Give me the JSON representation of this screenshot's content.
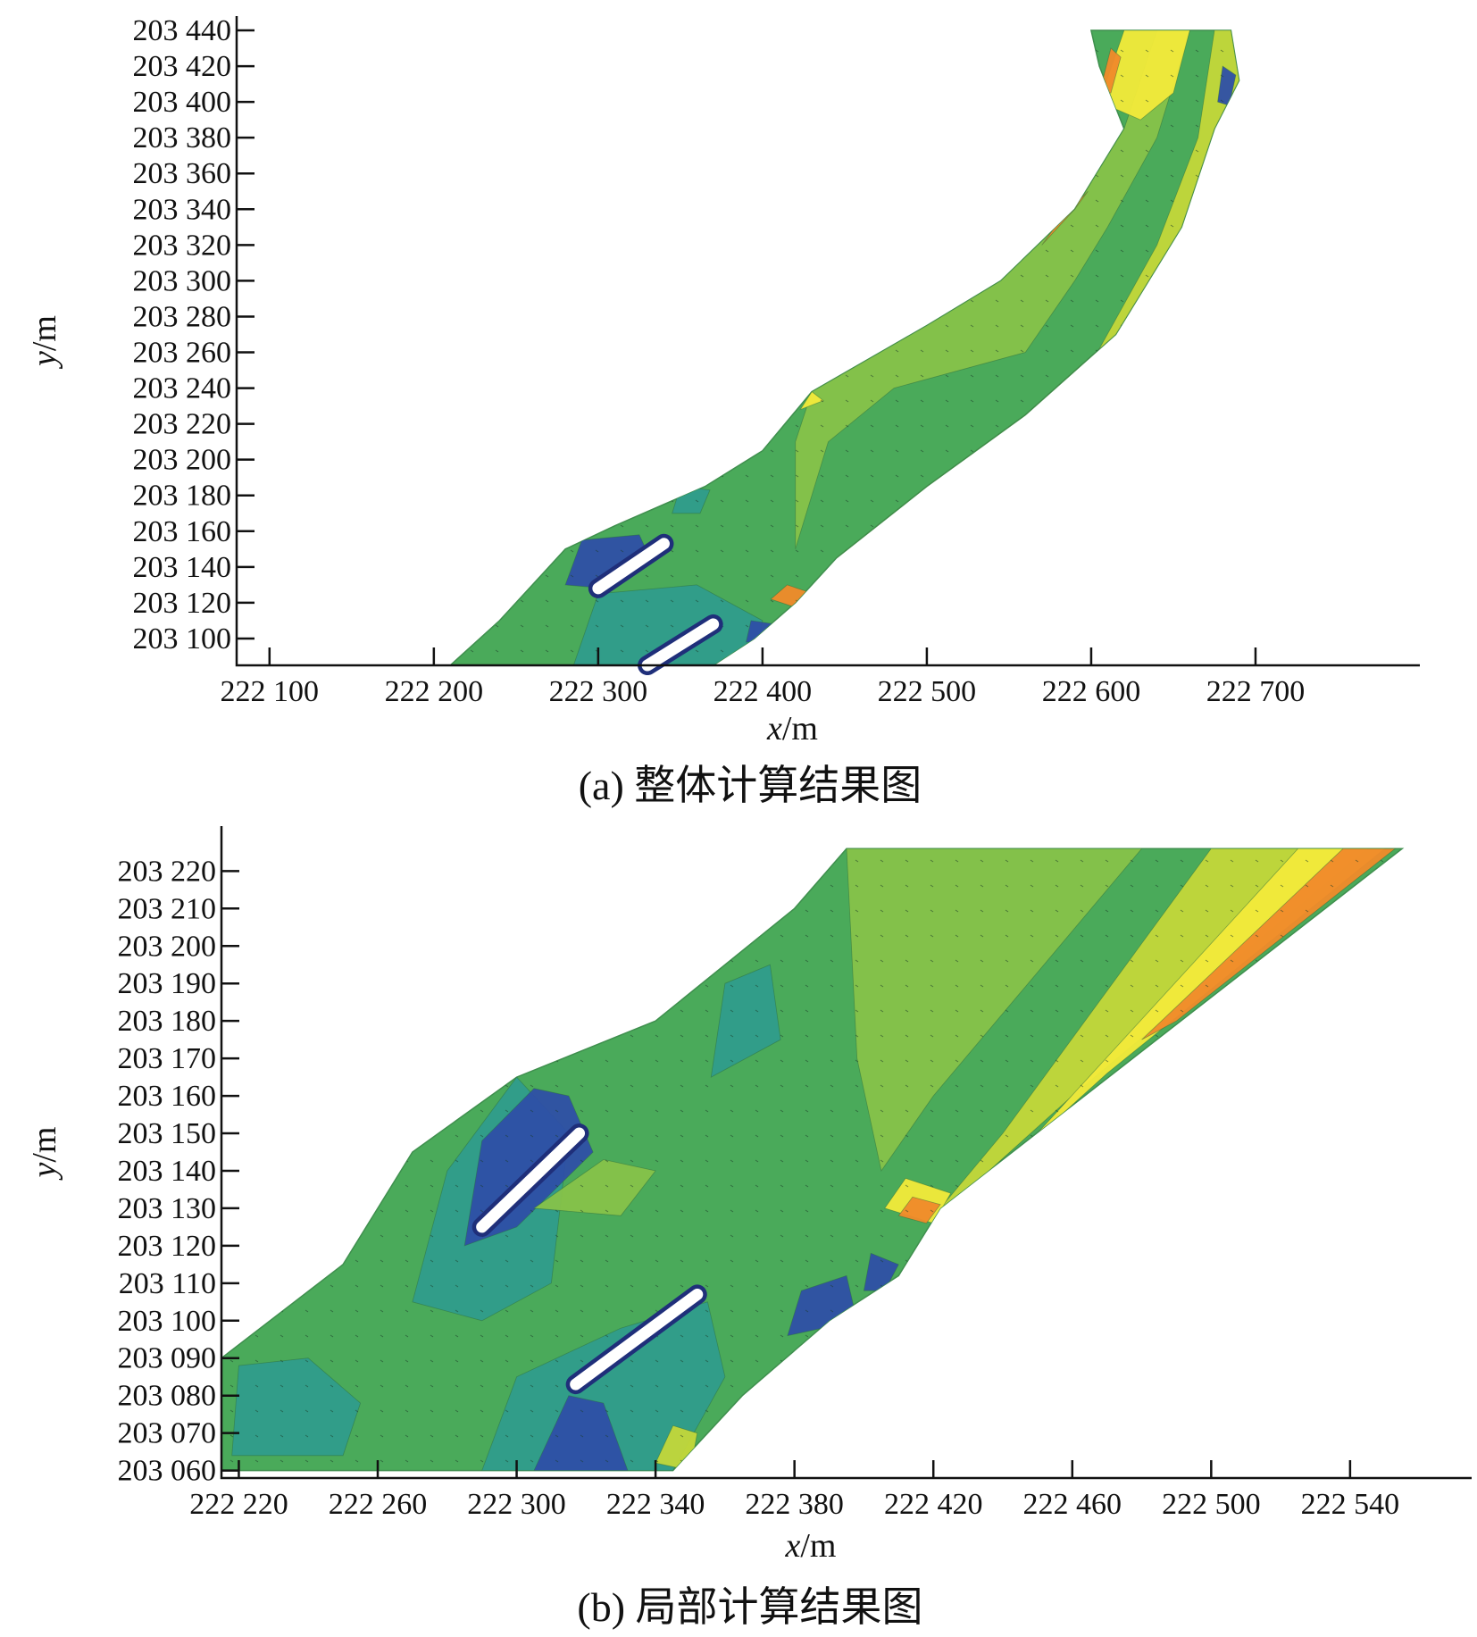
{
  "chart_data": [
    {
      "type": "heatmap",
      "title": "",
      "caption": "(a) 整体计算结果图",
      "xlabel_var": "x",
      "xlabel_unit": "/m",
      "ylabel_var": "y",
      "ylabel_unit": "/m",
      "xlim": [
        222080,
        222800
      ],
      "ylim": [
        203085,
        203448
      ],
      "x_ticks": [
        222100,
        222200,
        222300,
        222400,
        222500,
        222600,
        222700
      ],
      "x_tick_labels": [
        "222 100",
        "222 200",
        "222 300",
        "222 400",
        "222 500",
        "222 600",
        "222 700"
      ],
      "y_ticks": [
        203100,
        203120,
        203140,
        203160,
        203180,
        203200,
        203220,
        203240,
        203260,
        203280,
        203300,
        203320,
        203340,
        203360,
        203380,
        203400,
        203420,
        203440
      ],
      "y_tick_labels": [
        "203 100",
        "203 120",
        "203 140",
        "203 160",
        "203 180",
        "203 200",
        "203 220",
        "203 240",
        "203 260",
        "203 280",
        "203 300",
        "203 320",
        "203 340",
        "203 360",
        "203 380",
        "203 400",
        "203 420",
        "203 440"
      ],
      "colors": {
        "dark_blue": "#2e4fa6",
        "teal": "#2f9c8c",
        "green_mid": "#4aaa5a",
        "green_light": "#86c24a",
        "yellow_green": "#c3d73a",
        "yellow": "#f2ea3a",
        "orange": "#f08a2a",
        "red": "#d8402a"
      },
      "river_outline": [
        [
          222210,
          203085
        ],
        [
          222240,
          203110
        ],
        [
          222280,
          203150
        ],
        [
          222310,
          203163
        ],
        [
          222365,
          203185
        ],
        [
          222400,
          203205
        ],
        [
          222430,
          203238
        ],
        [
          222500,
          203275
        ],
        [
          222545,
          203300
        ],
        [
          222590,
          203340
        ],
        [
          222620,
          203385
        ],
        [
          222605,
          203420
        ],
        [
          222600,
          203440
        ],
        [
          222685,
          203440
        ],
        [
          222690,
          203412
        ],
        [
          222675,
          203385
        ],
        [
          222655,
          203330
        ],
        [
          222615,
          203270
        ],
        [
          222560,
          203225
        ],
        [
          222500,
          203185
        ],
        [
          222445,
          203145
        ],
        [
          222420,
          203120
        ],
        [
          222395,
          203100
        ],
        [
          222370,
          203085
        ]
      ],
      "regions": [
        {
          "fill": "teal",
          "pts": [
            [
              222285,
              203085
            ],
            [
              222300,
              203125
            ],
            [
              222360,
              203130
            ],
            [
              222400,
              203110
            ],
            [
              222395,
              203085
            ]
          ]
        },
        {
          "fill": "dark_blue",
          "pts": [
            [
              222280,
              203130
            ],
            [
              222290,
              203155
            ],
            [
              222325,
              203158
            ],
            [
              222330,
              203148
            ],
            [
              222305,
              203128
            ]
          ]
        },
        {
          "fill": "teal",
          "pts": [
            [
              222345,
              203170
            ],
            [
              222350,
              203185
            ],
            [
              222368,
              203183
            ],
            [
              222362,
              203170
            ]
          ]
        },
        {
          "fill": "dark_blue",
          "pts": [
            [
              222390,
              203098
            ],
            [
              222393,
              203110
            ],
            [
              222408,
              203108
            ],
            [
              222405,
              203098
            ]
          ]
        },
        {
          "fill": "green_light",
          "pts": [
            [
              222420,
              203150
            ],
            [
              222440,
              203210
            ],
            [
              222480,
              203240
            ],
            [
              222560,
              203260
            ],
            [
              222590,
              203300
            ],
            [
              222610,
              203330
            ],
            [
              222640,
              203380
            ],
            [
              222660,
              203440
            ],
            [
              222640,
              203440
            ],
            [
              222620,
              203385
            ],
            [
              222590,
              203340
            ],
            [
              222545,
              203300
            ],
            [
              222500,
              203275
            ],
            [
              222430,
              203238
            ],
            [
              222420,
              203210
            ]
          ]
        },
        {
          "fill": "yellow_green",
          "pts": [
            [
              222440,
              203130
            ],
            [
              222500,
              203178
            ],
            [
              222560,
              203218
            ],
            [
              222605,
              203262
            ],
            [
              222640,
              203320
            ],
            [
              222665,
              203380
            ],
            [
              222675,
              203440
            ],
            [
              222685,
              203440
            ],
            [
              222690,
              203412
            ],
            [
              222675,
              203385
            ],
            [
              222655,
              203330
            ],
            [
              222615,
              203270
            ],
            [
              222560,
              203225
            ],
            [
              222500,
              203185
            ],
            [
              222445,
              203145
            ]
          ]
        },
        {
          "fill": "yellow",
          "pts": [
            [
              222540,
              203300
            ],
            [
              222570,
              203325
            ],
            [
              222590,
              203340
            ],
            [
              222600,
              203355
            ],
            [
              222585,
              203365
            ],
            [
              222560,
              203325
            ]
          ]
        },
        {
          "fill": "yellow",
          "pts": [
            [
              222605,
              203400
            ],
            [
              222620,
              203440
            ],
            [
              222660,
              203440
            ],
            [
              222650,
              203405
            ],
            [
              222630,
              203390
            ]
          ]
        },
        {
          "fill": "orange",
          "pts": [
            [
              222570,
              203320
            ],
            [
              222590,
              203340
            ],
            [
              222598,
              203350
            ],
            [
              222582,
              203335
            ]
          ]
        },
        {
          "fill": "orange",
          "pts": [
            [
              222605,
              203405
            ],
            [
              222612,
              203430
            ],
            [
              222618,
              203425
            ],
            [
              222612,
              203405
            ]
          ]
        },
        {
          "fill": "orange",
          "pts": [
            [
              222405,
              203122
            ],
            [
              222415,
              203130
            ],
            [
              222428,
              203126
            ],
            [
              222418,
              203118
            ]
          ]
        },
        {
          "fill": "dark_blue",
          "pts": [
            [
              222677,
              203400
            ],
            [
              222680,
              203420
            ],
            [
              222688,
              203415
            ],
            [
              222684,
              203398
            ]
          ]
        },
        {
          "fill": "yellow",
          "pts": [
            [
              222423,
              203228
            ],
            [
              222430,
              203238
            ],
            [
              222437,
              203233
            ]
          ]
        }
      ],
      "spurs": [
        {
          "from": [
            222300,
            203128
          ],
          "to": [
            222340,
            203153
          ]
        },
        {
          "from": [
            222330,
            203085
          ],
          "to": [
            222370,
            203108
          ]
        }
      ]
    },
    {
      "type": "heatmap",
      "title": "",
      "caption": "(b) 局部计算结果图",
      "xlabel_var": "x",
      "xlabel_unit": "/m",
      "ylabel_var": "y",
      "ylabel_unit": "/m",
      "xlim": [
        222215,
        222575
      ],
      "ylim": [
        203058,
        203232
      ],
      "x_ticks": [
        222220,
        222260,
        222300,
        222340,
        222380,
        222420,
        222460,
        222500,
        222540
      ],
      "x_tick_labels": [
        "222 220",
        "222 260",
        "222 300",
        "222 340",
        "222 380",
        "222 420",
        "222 460",
        "222 500",
        "222 540"
      ],
      "y_ticks": [
        203060,
        203070,
        203080,
        203090,
        203100,
        203110,
        203120,
        203130,
        203140,
        203150,
        203160,
        203170,
        203180,
        203190,
        203200,
        203210,
        203220
      ],
      "y_tick_labels": [
        "203 060",
        "203 070",
        "203 080",
        "203 090",
        "203 100",
        "203 110",
        "203 120",
        "203 130",
        "203 140",
        "203 150",
        "203 160",
        "203 170",
        "203 180",
        "203 190",
        "203 200",
        "203 210",
        "203 220"
      ],
      "river_outline": [
        [
          222215,
          203060
        ],
        [
          222215,
          203090
        ],
        [
          222250,
          203115
        ],
        [
          222270,
          203145
        ],
        [
          222300,
          203165
        ],
        [
          222340,
          203180
        ],
        [
          222380,
          203210
        ],
        [
          222395,
          203226
        ],
        [
          222555,
          203226
        ],
        [
          222422,
          203130
        ],
        [
          222410,
          203112
        ],
        [
          222390,
          203100
        ],
        [
          222365,
          203080
        ],
        [
          222345,
          203060
        ]
      ],
      "regions": [
        {
          "fill": "teal",
          "pts": [
            [
              222218,
              203064
            ],
            [
              222220,
              203088
            ],
            [
              222240,
              203090
            ],
            [
              222255,
              203078
            ],
            [
              222250,
              203064
            ]
          ]
        },
        {
          "fill": "teal",
          "pts": [
            [
              222270,
              203105
            ],
            [
              222280,
              203140
            ],
            [
              222300,
              203165
            ],
            [
              222315,
              203150
            ],
            [
              222310,
              203110
            ],
            [
              222290,
              203100
            ]
          ]
        },
        {
          "fill": "dark_blue",
          "pts": [
            [
              222285,
              203120
            ],
            [
              222290,
              203148
            ],
            [
              222305,
              203162
            ],
            [
              222315,
              203160
            ],
            [
              222322,
              203145
            ],
            [
              222300,
              203125
            ]
          ]
        },
        {
          "fill": "teal",
          "pts": [
            [
              222290,
              203060
            ],
            [
              222300,
              203085
            ],
            [
              222330,
              203098
            ],
            [
              222355,
              203105
            ],
            [
              222360,
              203085
            ],
            [
              222345,
              203060
            ]
          ]
        },
        {
          "fill": "dark_blue",
          "pts": [
            [
              222305,
              203060
            ],
            [
              222315,
              203080
            ],
            [
              222325,
              203078
            ],
            [
              222332,
              203060
            ]
          ]
        },
        {
          "fill": "teal",
          "pts": [
            [
              222356,
              203165
            ],
            [
              222360,
              203190
            ],
            [
              222373,
              203195
            ],
            [
              222376,
              203175
            ]
          ]
        },
        {
          "fill": "dark_blue",
          "pts": [
            [
              222378,
              203096
            ],
            [
              222382,
              203108
            ],
            [
              222395,
              203112
            ],
            [
              222398,
              203100
            ]
          ]
        },
        {
          "fill": "dark_blue",
          "pts": [
            [
              222400,
              203108
            ],
            [
              222402,
              203118
            ],
            [
              222410,
              203115
            ],
            [
              222406,
              203108
            ]
          ]
        },
        {
          "fill": "green_light",
          "pts": [
            [
              222395,
              203226
            ],
            [
              222480,
              203226
            ],
            [
              222420,
              203160
            ],
            [
              222405,
              203140
            ],
            [
              222398,
              203170
            ]
          ]
        },
        {
          "fill": "yellow_green",
          "pts": [
            [
              222500,
              203226
            ],
            [
              222545,
              203226
            ],
            [
              222460,
              203160
            ],
            [
              222430,
              203135
            ],
            [
              222422,
              203130
            ],
            [
              222440,
              203150
            ]
          ]
        },
        {
          "fill": "yellow",
          "pts": [
            [
              222525,
              203226
            ],
            [
              222550,
              203226
            ],
            [
              222470,
              203166
            ],
            [
              222445,
              203145
            ]
          ]
        },
        {
          "fill": "orange",
          "pts": [
            [
              222538,
              203226
            ],
            [
              222553,
              203226
            ],
            [
              222490,
              203180
            ],
            [
              222480,
              203175
            ]
          ]
        },
        {
          "fill": "yellow",
          "pts": [
            [
              222406,
              203130
            ],
            [
              222412,
              203138
            ],
            [
              222425,
              203134
            ],
            [
              222420,
              203126
            ]
          ]
        },
        {
          "fill": "orange",
          "pts": [
            [
              222410,
              203128
            ],
            [
              222414,
              203133
            ],
            [
              222422,
              203131
            ],
            [
              222418,
              203126
            ]
          ]
        },
        {
          "fill": "green_light",
          "pts": [
            [
              222305,
              203130
            ],
            [
              222325,
              203143
            ],
            [
              222340,
              203140
            ],
            [
              222330,
              203128
            ]
          ]
        },
        {
          "fill": "yellow_green",
          "pts": [
            [
              222340,
              203062
            ],
            [
              222345,
              203072
            ],
            [
              222352,
              203070
            ],
            [
              222350,
              203060
            ]
          ]
        }
      ],
      "spurs": [
        {
          "from": [
            222290,
            203125
          ],
          "to": [
            222318,
            203150
          ]
        },
        {
          "from": [
            222317,
            203083
          ],
          "to": [
            222352,
            203107
          ]
        }
      ]
    }
  ]
}
